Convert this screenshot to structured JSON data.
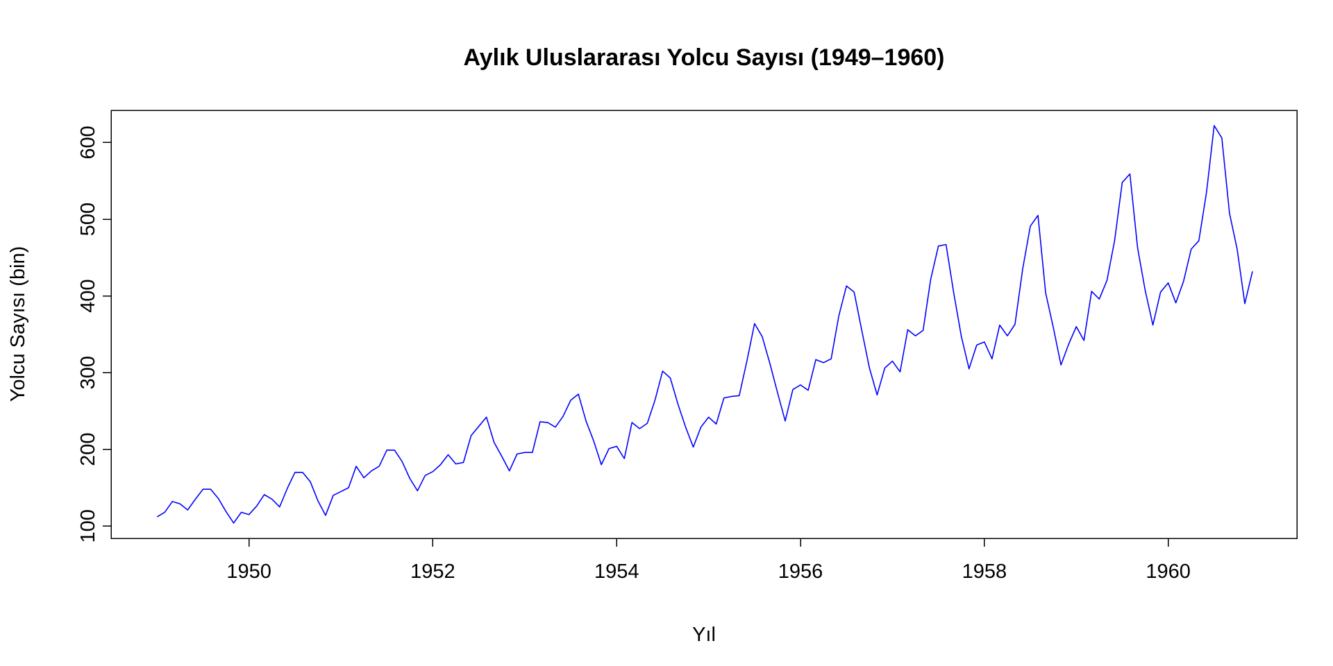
{
  "chart_data": {
    "type": "line",
    "title": "Aylık Uluslararası Yolcu Sayısı (1949–1960)",
    "xlabel": "Yıl",
    "ylabel": "Yolcu Sayısı (bin)",
    "xlim": [
      1948.5,
      1961.4
    ],
    "ylim": [
      84,
      642
    ],
    "x_ticks": [
      1950,
      1952,
      1954,
      1956,
      1958,
      1960
    ],
    "y_ticks": [
      100,
      200,
      300,
      400,
      500,
      600
    ],
    "grid": false,
    "legend": "none",
    "color": "#0000ff",
    "series": [
      {
        "x_start": 1949,
        "x_step": 0.0833333,
        "values": [
          112,
          118,
          132,
          129,
          121,
          135,
          148,
          148,
          136,
          119,
          104,
          118,
          115,
          126,
          141,
          135,
          125,
          149,
          170,
          170,
          158,
          133,
          114,
          140,
          145,
          150,
          178,
          163,
          172,
          178,
          199,
          199,
          184,
          162,
          146,
          166,
          171,
          180,
          193,
          181,
          183,
          218,
          230,
          242,
          209,
          191,
          172,
          194,
          196,
          196,
          236,
          235,
          229,
          243,
          264,
          272,
          237,
          211,
          180,
          201,
          204,
          188,
          235,
          227,
          234,
          264,
          302,
          293,
          259,
          229,
          203,
          229,
          242,
          233,
          267,
          269,
          270,
          315,
          364,
          347,
          312,
          274,
          237,
          278,
          284,
          277,
          317,
          313,
          318,
          374,
          413,
          405,
          355,
          306,
          271,
          306,
          315,
          301,
          356,
          348,
          355,
          422,
          465,
          467,
          404,
          347,
          305,
          336,
          340,
          318,
          362,
          348,
          363,
          435,
          491,
          505,
          404,
          359,
          310,
          337,
          360,
          342,
          406,
          396,
          420,
          472,
          548,
          559,
          463,
          407,
          362,
          405,
          417,
          391,
          419,
          461,
          472,
          535,
          622,
          606,
          508,
          461,
          390,
          432
        ]
      }
    ]
  }
}
